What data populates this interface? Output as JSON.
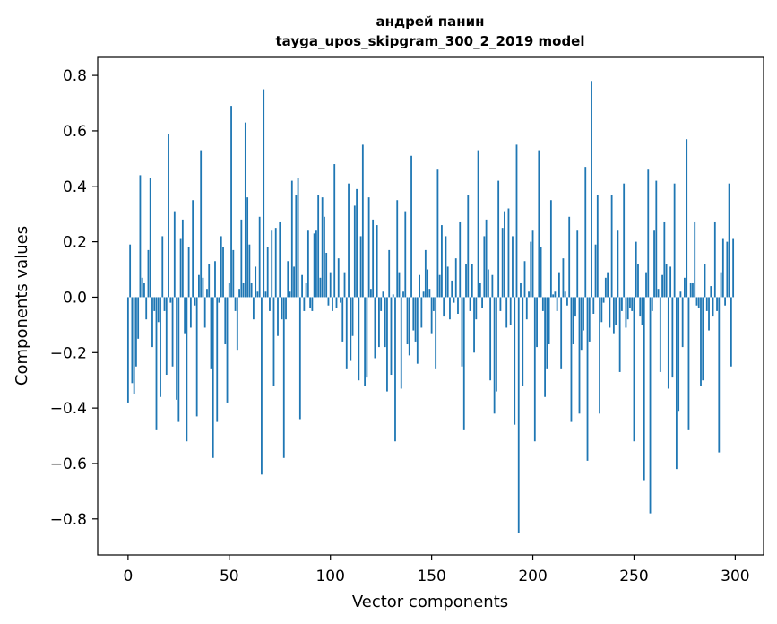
{
  "chart_data": {
    "type": "bar",
    "title_line1": "андрей панин",
    "title_line2": "tayga_upos_skipgram_300_2_2019 model",
    "xlabel": "Vector components",
    "ylabel": "Components values",
    "xlim": [
      -15,
      314
    ],
    "ylim": [
      -0.93,
      0.865
    ],
    "x_ticks": [
      0,
      50,
      100,
      150,
      200,
      250,
      300
    ],
    "x_tick_labels": [
      "0",
      "50",
      "100",
      "150",
      "200",
      "250",
      "300"
    ],
    "y_ticks": [
      -0.8,
      -0.6,
      -0.4,
      -0.2,
      0.0,
      0.2,
      0.4,
      0.6,
      0.8
    ],
    "y_tick_labels": [
      "−0.8",
      "−0.6",
      "−0.4",
      "−0.2",
      "0.0",
      "0.2",
      "0.4",
      "0.6",
      "0.8"
    ],
    "bar_color": "#1f77b4",
    "x": "components 0..299",
    "values": [
      -0.38,
      0.19,
      -0.31,
      -0.35,
      -0.25,
      -0.15,
      0.44,
      0.07,
      0.05,
      -0.08,
      0.17,
      0.43,
      -0.18,
      -0.05,
      -0.48,
      -0.09,
      -0.36,
      0.22,
      -0.05,
      -0.28,
      0.59,
      -0.02,
      -0.25,
      0.31,
      -0.37,
      -0.45,
      0.21,
      0.28,
      -0.13,
      -0.52,
      0.18,
      -0.11,
      0.35,
      -0.03,
      -0.43,
      0.08,
      0.53,
      0.07,
      -0.11,
      0.03,
      0.12,
      -0.26,
      -0.58,
      0.13,
      -0.45,
      -0.02,
      0.22,
      0.18,
      -0.17,
      -0.38,
      0.05,
      0.69,
      0.17,
      -0.05,
      -0.19,
      0.03,
      0.28,
      0.05,
      0.63,
      0.36,
      0.19,
      0.05,
      -0.08,
      0.11,
      0.02,
      0.29,
      -0.64,
      0.75,
      0.02,
      0.18,
      -0.05,
      0.24,
      -0.32,
      0.25,
      -0.14,
      0.27,
      -0.08,
      -0.58,
      -0.08,
      0.13,
      0.02,
      0.42,
      0.11,
      0.37,
      0.43,
      -0.44,
      0.08,
      -0.05,
      0.05,
      0.24,
      -0.04,
      -0.05,
      0.23,
      0.24,
      0.37,
      0.07,
      0.36,
      0.29,
      0.16,
      -0.03,
      0.09,
      -0.05,
      0.48,
      -0.04,
      0.14,
      -0.02,
      -0.16,
      0.09,
      -0.26,
      0.41,
      -0.23,
      -0.14,
      0.33,
      0.39,
      -0.3,
      0.22,
      0.55,
      -0.32,
      -0.29,
      0.36,
      0.03,
      0.28,
      -0.22,
      0.26,
      -0.18,
      -0.05,
      0.02,
      -0.18,
      -0.34,
      0.17,
      -0.28,
      0.01,
      -0.52,
      0.35,
      0.09,
      -0.33,
      0.02,
      0.31,
      -0.17,
      -0.21,
      0.51,
      -0.12,
      -0.16,
      -0.24,
      0.08,
      -0.11,
      0.02,
      0.17,
      0.1,
      0.03,
      -0.13,
      -0.05,
      -0.26,
      0.46,
      0.08,
      0.26,
      -0.07,
      0.22,
      0.11,
      -0.08,
      0.06,
      -0.02,
      0.14,
      -0.06,
      0.27,
      -0.25,
      -0.48,
      0.12,
      0.37,
      -0.05,
      0.12,
      -0.2,
      -0.08,
      0.53,
      0.05,
      -0.04,
      0.22,
      0.28,
      0.1,
      -0.3,
      0.08,
      -0.42,
      -0.34,
      0.42,
      -0.05,
      0.25,
      0.31,
      -0.11,
      0.32,
      -0.1,
      0.22,
      -0.46,
      0.55,
      -0.85,
      0.05,
      -0.32,
      0.13,
      -0.08,
      0.02,
      0.2,
      0.24,
      -0.52,
      -0.18,
      0.53,
      0.18,
      -0.05,
      -0.36,
      -0.26,
      -0.17,
      0.35,
      0.01,
      0.02,
      -0.05,
      0.09,
      -0.26,
      0.14,
      0.02,
      -0.03,
      0.29,
      -0.45,
      -0.17,
      -0.07,
      0.24,
      -0.42,
      -0.19,
      -0.12,
      0.47,
      -0.59,
      -0.16,
      0.78,
      -0.06,
      0.19,
      0.37,
      -0.42,
      -0.09,
      -0.02,
      0.07,
      0.09,
      -0.11,
      0.37,
      -0.13,
      -0.1,
      0.24,
      -0.27,
      -0.05,
      0.41,
      -0.11,
      -0.08,
      -0.04,
      -0.05,
      -0.52,
      0.2,
      0.12,
      -0.07,
      -0.1,
      -0.66,
      0.09,
      0.46,
      -0.78,
      -0.05,
      0.24,
      0.42,
      0.03,
      -0.27,
      0.08,
      0.27,
      0.12,
      -0.33,
      0.11,
      -0.29,
      0.41,
      -0.62,
      -0.41,
      0.02,
      -0.18,
      0.07,
      0.57,
      -0.48,
      0.05,
      0.05,
      0.27,
      -0.03,
      -0.04,
      -0.32,
      -0.3,
      0.12,
      -0.05,
      -0.12,
      0.04,
      -0.07,
      0.27,
      -0.05,
      -0.56,
      0.09,
      0.21,
      -0.03,
      0.2,
      0.41,
      -0.25,
      0.21
    ]
  }
}
